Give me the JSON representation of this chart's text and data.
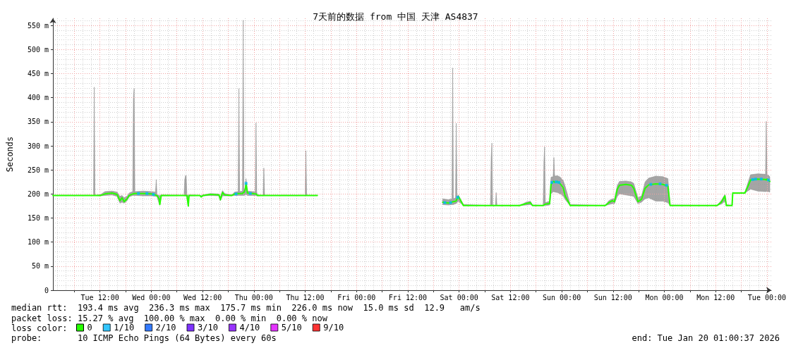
{
  "chart_data": {
    "type": "line",
    "title": "7天前的数据 from 中国 天津 AS4837",
    "ylabel": "Seconds",
    "legend_title": "loss color:",
    "annotations": [
      "median rtt:  193.4 ms avg  236.3 ms max  175.7 ms min  226.0 ms now  15.0 ms sd  12.9   am/s",
      "packet loss: 15.27 % avg  100.00 % max  0.00 % min  0.00 % now",
      "probe:       10 ICMP Echo Pings (64 Bytes) every 60s",
      "end: Tue Jan 20 01:00:37 2026"
    ],
    "xlim": [
      "2026-01-13T01:00",
      "2026-01-20T01:00"
    ],
    "xticks": [
      {
        "value": "2026-01-13T06:00",
        "label": null
      },
      {
        "value": "2026-01-13T12:00",
        "label": "Tue 12:00"
      },
      {
        "value": "2026-01-13T18:00",
        "label": null
      },
      {
        "value": "2026-01-14T00:00",
        "label": "Wed 00:00"
      },
      {
        "value": "2026-01-14T06:00",
        "label": null
      },
      {
        "value": "2026-01-14T12:00",
        "label": "Wed 12:00"
      },
      {
        "value": "2026-01-14T18:00",
        "label": null
      },
      {
        "value": "2026-01-15T00:00",
        "label": "Thu 00:00"
      },
      {
        "value": "2026-01-15T06:00",
        "label": null
      },
      {
        "value": "2026-01-15T12:00",
        "label": "Thu 12:00"
      },
      {
        "value": "2026-01-15T18:00",
        "label": null
      },
      {
        "value": "2026-01-16T00:00",
        "label": "Fri 00:00"
      },
      {
        "value": "2026-01-16T06:00",
        "label": null
      },
      {
        "value": "2026-01-16T12:00",
        "label": "Fri 12:00"
      },
      {
        "value": "2026-01-16T18:00",
        "label": null
      },
      {
        "value": "2026-01-17T00:00",
        "label": "Sat 00:00"
      },
      {
        "value": "2026-01-17T06:00",
        "label": null
      },
      {
        "value": "2026-01-17T12:00",
        "label": "Sat 12:00"
      },
      {
        "value": "2026-01-17T18:00",
        "label": null
      },
      {
        "value": "2026-01-18T00:00",
        "label": "Sun 00:00"
      },
      {
        "value": "2026-01-18T06:00",
        "label": null
      },
      {
        "value": "2026-01-18T12:00",
        "label": "Sun 12:00"
      },
      {
        "value": "2026-01-18T18:00",
        "label": null
      },
      {
        "value": "2026-01-19T00:00",
        "label": "Mon 00:00"
      },
      {
        "value": "2026-01-19T06:00",
        "label": null
      },
      {
        "value": "2026-01-19T12:00",
        "label": "Mon 12:00"
      },
      {
        "value": "2026-01-19T18:00",
        "label": null
      },
      {
        "value": "2026-01-20T00:00",
        "label": "Tue 00:00"
      }
    ],
    "ylim": [
      0,
      565
    ],
    "yticks": [
      0,
      {
        "value": 50,
        "label": "50 m"
      },
      {
        "value": 100,
        "label": "100 m"
      },
      {
        "value": 150,
        "label": "150 m"
      },
      {
        "value": 200,
        "label": "200 m"
      },
      {
        "value": 250,
        "label": "250 m"
      },
      {
        "value": 300,
        "label": "300 m"
      },
      {
        "value": 350,
        "label": "350 m"
      },
      {
        "value": 400,
        "label": "400 m"
      },
      {
        "value": 450,
        "label": "450 m"
      },
      {
        "value": 500,
        "label": "500 m"
      },
      {
        "value": 550,
        "label": "550 m"
      }
    ],
    "grid": true,
    "legend": "bottom",
    "marker": "none",
    "series": [
      {
        "name": "0",
        "color": "#26ff00",
        "x": [
          "2026-01-13T01:00",
          "2026-01-13T10:30",
          "2026-01-13T10:40",
          "2026-01-13T10:50",
          "2026-01-13T12:10",
          "2026-01-13T13:10",
          "2026-01-13T14:50",
          "2026-01-13T16:00",
          "2026-01-13T16:40",
          "2026-01-13T17:10",
          "2026-01-13T17:40",
          "2026-01-13T18:20",
          "2026-01-13T18:50",
          "2026-01-13T19:40",
          "2026-01-13T19:50",
          "2026-01-13T20:00",
          "2026-01-13T20:10",
          "2026-01-13T22:10",
          "2026-01-14T00:10",
          "2026-01-14T01:00",
          "2026-01-14T01:10",
          "2026-01-14T01:20",
          "2026-01-14T01:50",
          "2026-01-14T02:00",
          "2026-01-14T02:20",
          "2026-01-14T07:40",
          "2026-01-14T07:50",
          "2026-01-14T08:00",
          "2026-01-14T08:10",
          "2026-01-14T08:20",
          "2026-01-14T08:40",
          "2026-01-14T08:50",
          "2026-01-14T11:20",
          "2026-01-14T11:40",
          "2026-01-14T12:10",
          "2026-01-14T13:50",
          "2026-01-14T15:50",
          "2026-01-14T16:10",
          "2026-01-14T16:40",
          "2026-01-14T17:10",
          "2026-01-14T18:50",
          "2026-01-14T19:30",
          "2026-01-14T20:20",
          "2026-01-14T20:30",
          "2026-01-14T20:40",
          "2026-01-14T21:20",
          "2026-01-14T21:30",
          "2026-01-14T21:40",
          "2026-01-14T22:00",
          "2026-01-14T22:10",
          "2026-01-14T22:30",
          "2026-01-14T23:40",
          "2026-01-15T00:20",
          "2026-01-15T00:30",
          "2026-01-15T00:40",
          "2026-01-15T00:50",
          "2026-01-15T02:10",
          "2026-01-15T02:20",
          "2026-01-15T02:30",
          "2026-01-15T12:00",
          "2026-01-15T12:10",
          "2026-01-15T12:20",
          "2026-01-15T14:50",
          "2026-01-16T00:00",
          "2026-01-16T20:10",
          "2026-01-16T21:30",
          "2026-01-16T22:20",
          "2026-01-16T22:30",
          "2026-01-16T22:40",
          "2026-01-16T23:10",
          "2026-01-16T23:20",
          "2026-01-16T23:30",
          "2026-01-16T23:50",
          "2026-01-17T01:00",
          "2026-01-17T07:20",
          "2026-01-17T07:30",
          "2026-01-17T07:40",
          "2026-01-17T07:50",
          "2026-01-17T08:30",
          "2026-01-17T08:40",
          "2026-01-17T08:50",
          "2026-01-17T14:10",
          "2026-01-17T15:40",
          "2026-01-17T16:40",
          "2026-01-17T17:10",
          "2026-01-17T19:40",
          "2026-01-17T19:50",
          "2026-01-17T20:00",
          "2026-01-17T20:10",
          "2026-01-17T21:10",
          "2026-01-17T21:30",
          "2026-01-17T22:00",
          "2026-01-17T22:10",
          "2026-01-17T22:20",
          "2026-01-17T23:00",
          "2026-01-17T23:40",
          "2026-01-18T00:20",
          "2026-01-18T00:50",
          "2026-01-18T02:00",
          "2026-01-18T10:10",
          "2026-01-18T11:00",
          "2026-01-18T11:50",
          "2026-01-18T12:20",
          "2026-01-18T13:00",
          "2026-01-18T13:30",
          "2026-01-18T15:00",
          "2026-01-18T16:20",
          "2026-01-18T16:50",
          "2026-01-18T17:50",
          "2026-01-18T18:40",
          "2026-01-18T19:30",
          "2026-01-18T20:20",
          "2026-01-18T22:00",
          "2026-01-18T23:40",
          "2026-01-19T00:50",
          "2026-01-19T01:20",
          "2026-01-19T12:20",
          "2026-01-19T13:20",
          "2026-01-19T14:10",
          "2026-01-19T14:30",
          "2026-01-19T15:50",
          "2026-01-19T16:00",
          "2026-01-19T18:50",
          "2026-01-19T19:30",
          "2026-01-19T20:10",
          "2026-01-19T21:50",
          "2026-01-19T23:30",
          "2026-01-19T23:40",
          "2026-01-19T23:50",
          "2026-01-20T00:00",
          "2026-01-20T00:40"
        ],
        "values": [
          197,
          197,
          197,
          197,
          197,
          200,
          202,
          199,
          186,
          192,
          184,
          190,
          197,
          200,
          200,
          201,
          201,
          201,
          200,
          198,
          197,
          197,
          190,
          178,
          197,
          197,
          197,
          197,
          197,
          197,
          175,
          197,
          197,
          194,
          197,
          199,
          198,
          188,
          203,
          198,
          197,
          200,
          201,
          201,
          201,
          201,
          203,
          203,
          210,
          222,
          202,
          201,
          200,
          200,
          199,
          197,
          197,
          197,
          197,
          197,
          197,
          197,
          197,
          null,
          183,
          181,
          183,
          184,
          184,
          185,
          186,
          190,
          195,
          176,
          176,
          176,
          176,
          176,
          176,
          176,
          176,
          176,
          180,
          182,
          176,
          176,
          177,
          178,
          179,
          180,
          220,
          226,
          226,
          224,
          226,
          221,
          213,
          195,
          176,
          176,
          182,
          186,
          184,
          210,
          218,
          220,
          218,
          212,
          184,
          189,
          212,
          219,
          221,
          220,
          216,
          176,
          176,
          183,
          196,
          176,
          176,
          202,
          202,
          215,
          229,
          231,
          230,
          230,
          229,
          231,
          226
        ],
        "lower": [
          197,
          197,
          197,
          197,
          196,
          197,
          198,
          195,
          181,
          183,
          181,
          186,
          194,
          197,
          197,
          197,
          197,
          196,
          196,
          195,
          195,
          195,
          180,
          177,
          196,
          197,
          196,
          196,
          196,
          196,
          174,
          196,
          197,
          193,
          196,
          197,
          196,
          186,
          196,
          196,
          196,
          197,
          197,
          197,
          197,
          197,
          197,
          197,
          198,
          199,
          197,
          197,
          197,
          197,
          196,
          196,
          197,
          197,
          197,
          197,
          197,
          197,
          197,
          null,
          178,
          177,
          178,
          178,
          178,
          180,
          180,
          182,
          185,
          176,
          176,
          176,
          176,
          176,
          176,
          176,
          176,
          176,
          177,
          178,
          176,
          176,
          176,
          176,
          176,
          177,
          200,
          205,
          205,
          204,
          203,
          200,
          196,
          188,
          176,
          176,
          178,
          180,
          180,
          195,
          200,
          198,
          196,
          195,
          180,
          183,
          190,
          192,
          185,
          185,
          182,
          176,
          176,
          179,
          185,
          176,
          176,
          202,
          202,
          206,
          210,
          206,
          205,
          205,
          205,
          206,
          204
        ],
        "upper": [
          197,
          197,
          422,
          197,
          199,
          205,
          206,
          204,
          195,
          197,
          192,
          195,
          202,
          205,
          400,
          419,
          205,
          206,
          205,
          204,
          230,
          199,
          197,
          197,
          198,
          197,
          230,
          238,
          238,
          199,
          197,
          198,
          197,
          197,
          198,
          201,
          200,
          194,
          207,
          201,
          198,
          204,
          205,
          419,
          205,
          206,
          561,
          206,
          215,
          232,
          206,
          205,
          205,
          348,
          204,
          198,
          197,
          254,
          197,
          197,
          290,
          197,
          197,
          null,
          190,
          188,
          190,
          462,
          190,
          192,
          347,
          195,
          198,
          178,
          176,
          276,
          306,
          176,
          176,
          203,
          176,
          176,
          183,
          185,
          177,
          176,
          268,
          298,
          182,
          185,
          235,
          236,
          276,
          237,
          238,
          235,
          228,
          215,
          178,
          176,
          186,
          190,
          189,
          218,
          226,
          227,
          225,
          222,
          192,
          196,
          225,
          233,
          237,
          236,
          232,
          177,
          176,
          187,
          199,
          178,
          176,
          202,
          203,
          222,
          240,
          242,
          241,
          241,
          351,
          241,
          236
        ]
      },
      {
        "name": "1/10",
        "type": "scatter",
        "marker": "square",
        "color": "#00b8ff",
        "x": [
          "2026-01-13T21:00",
          "2026-01-13T23:00",
          "2026-01-14T00:30",
          "2026-01-14T19:50",
          "2026-01-14T22:10",
          "2026-01-14T23:10",
          "2026-01-16T20:40",
          "2026-01-16T22:00",
          "2026-01-16T23:40",
          "2026-01-17T21:40",
          "2026-01-17T22:40",
          "2026-01-17T23:20",
          "2026-01-18T20:50",
          "2026-01-18T23:00",
          "2026-01-19T00:30",
          "2026-01-19T20:40",
          "2026-01-19T21:20",
          "2026-01-19T22:40",
          "2026-01-20T00:20"
        ],
        "values": [
          201,
          201,
          199,
          200,
          222,
          201,
          182,
          182,
          193,
          224,
          225,
          224,
          220,
          221,
          218,
          230,
          231,
          231,
          229
        ]
      },
      {
        "name": "2/10",
        "type": "scatter",
        "color": "#0059ff"
      },
      {
        "name": "3/10",
        "type": "scatter",
        "color": "#5e00ff"
      },
      {
        "name": "4/10",
        "type": "scatter",
        "color": "#7e00ff"
      },
      {
        "name": "5/10",
        "type": "scatter",
        "color": "#dd00ff"
      },
      {
        "name": "9/10",
        "type": "scatter",
        "color": "#ff0000"
      }
    ]
  }
}
